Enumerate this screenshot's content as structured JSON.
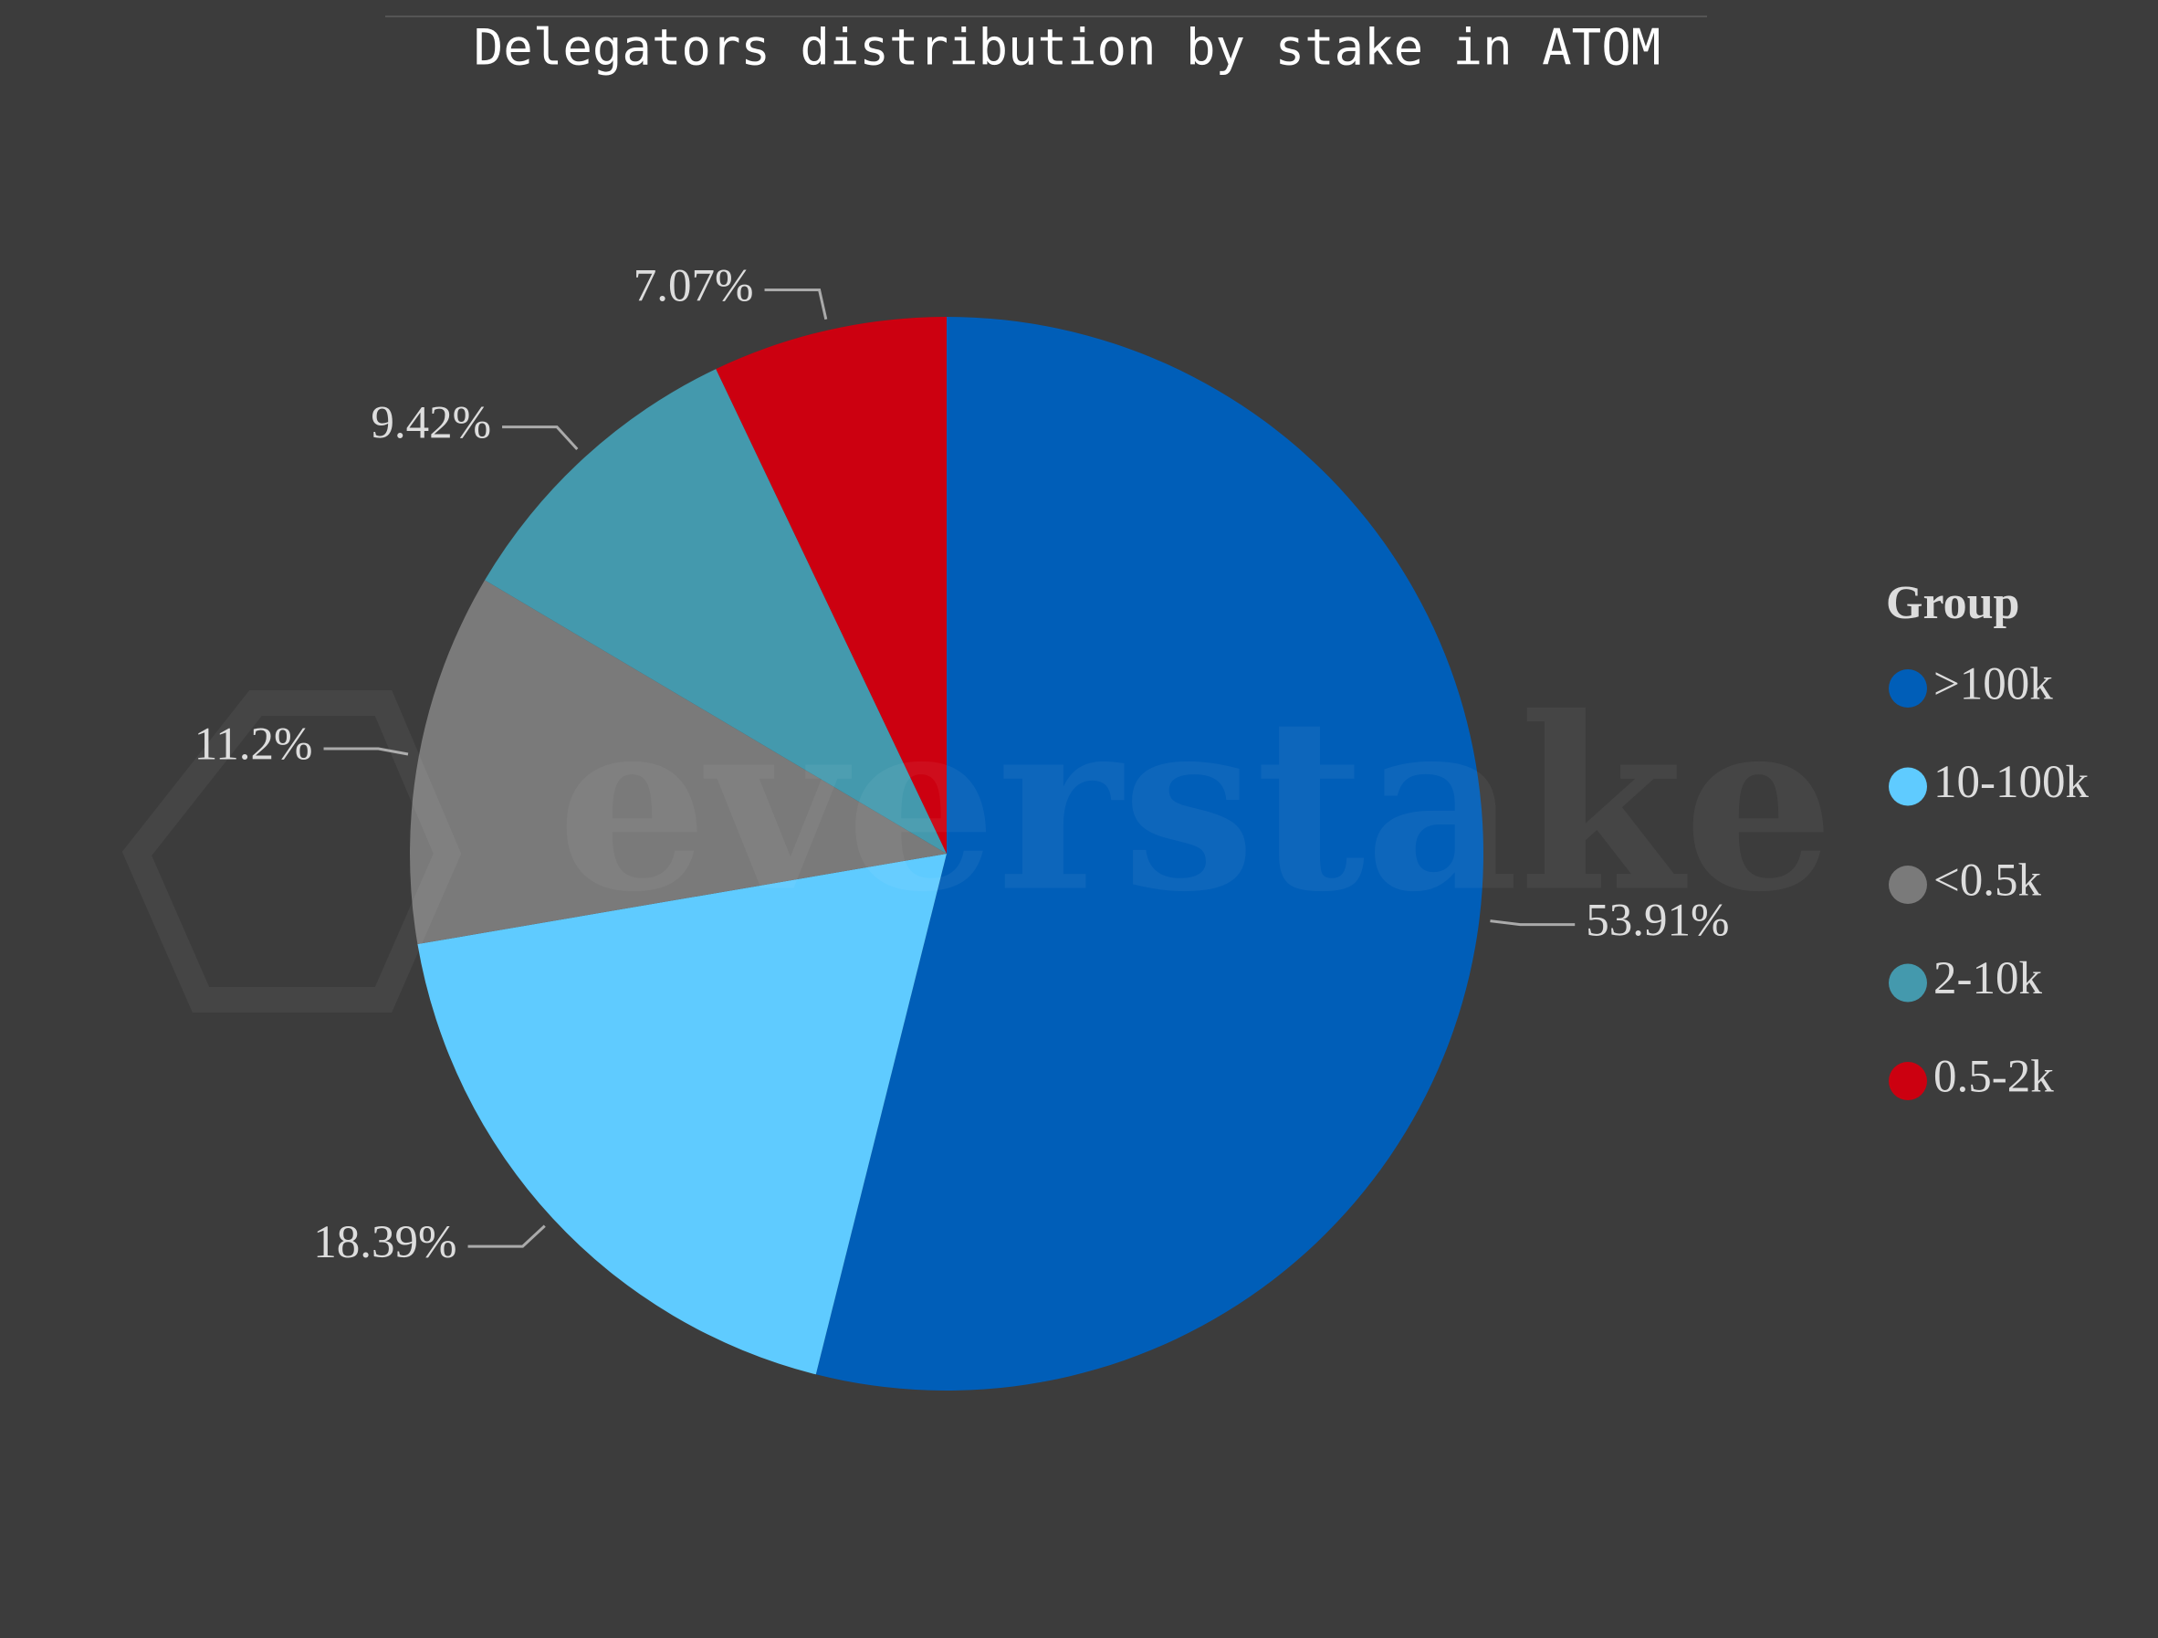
{
  "chart_data": {
    "type": "pie",
    "title": "Delegators distribution by stake in ATOM",
    "legend_title": "Group",
    "watermark": "everstake",
    "categories": [
      ">100k",
      "10-100k",
      "<0.5k",
      "2-10k",
      "0.5-2k"
    ],
    "values": [
      53.91,
      18.39,
      11.2,
      9.42,
      7.07
    ],
    "value_labels": [
      "53.91%",
      "18.39%",
      "11.2%",
      "9.42%",
      "7.07%"
    ],
    "colors": [
      "#005eb8",
      "#5fcbff",
      "#7a7a7a",
      "#4499ad",
      "#cc0010"
    ],
    "legend": "right"
  }
}
